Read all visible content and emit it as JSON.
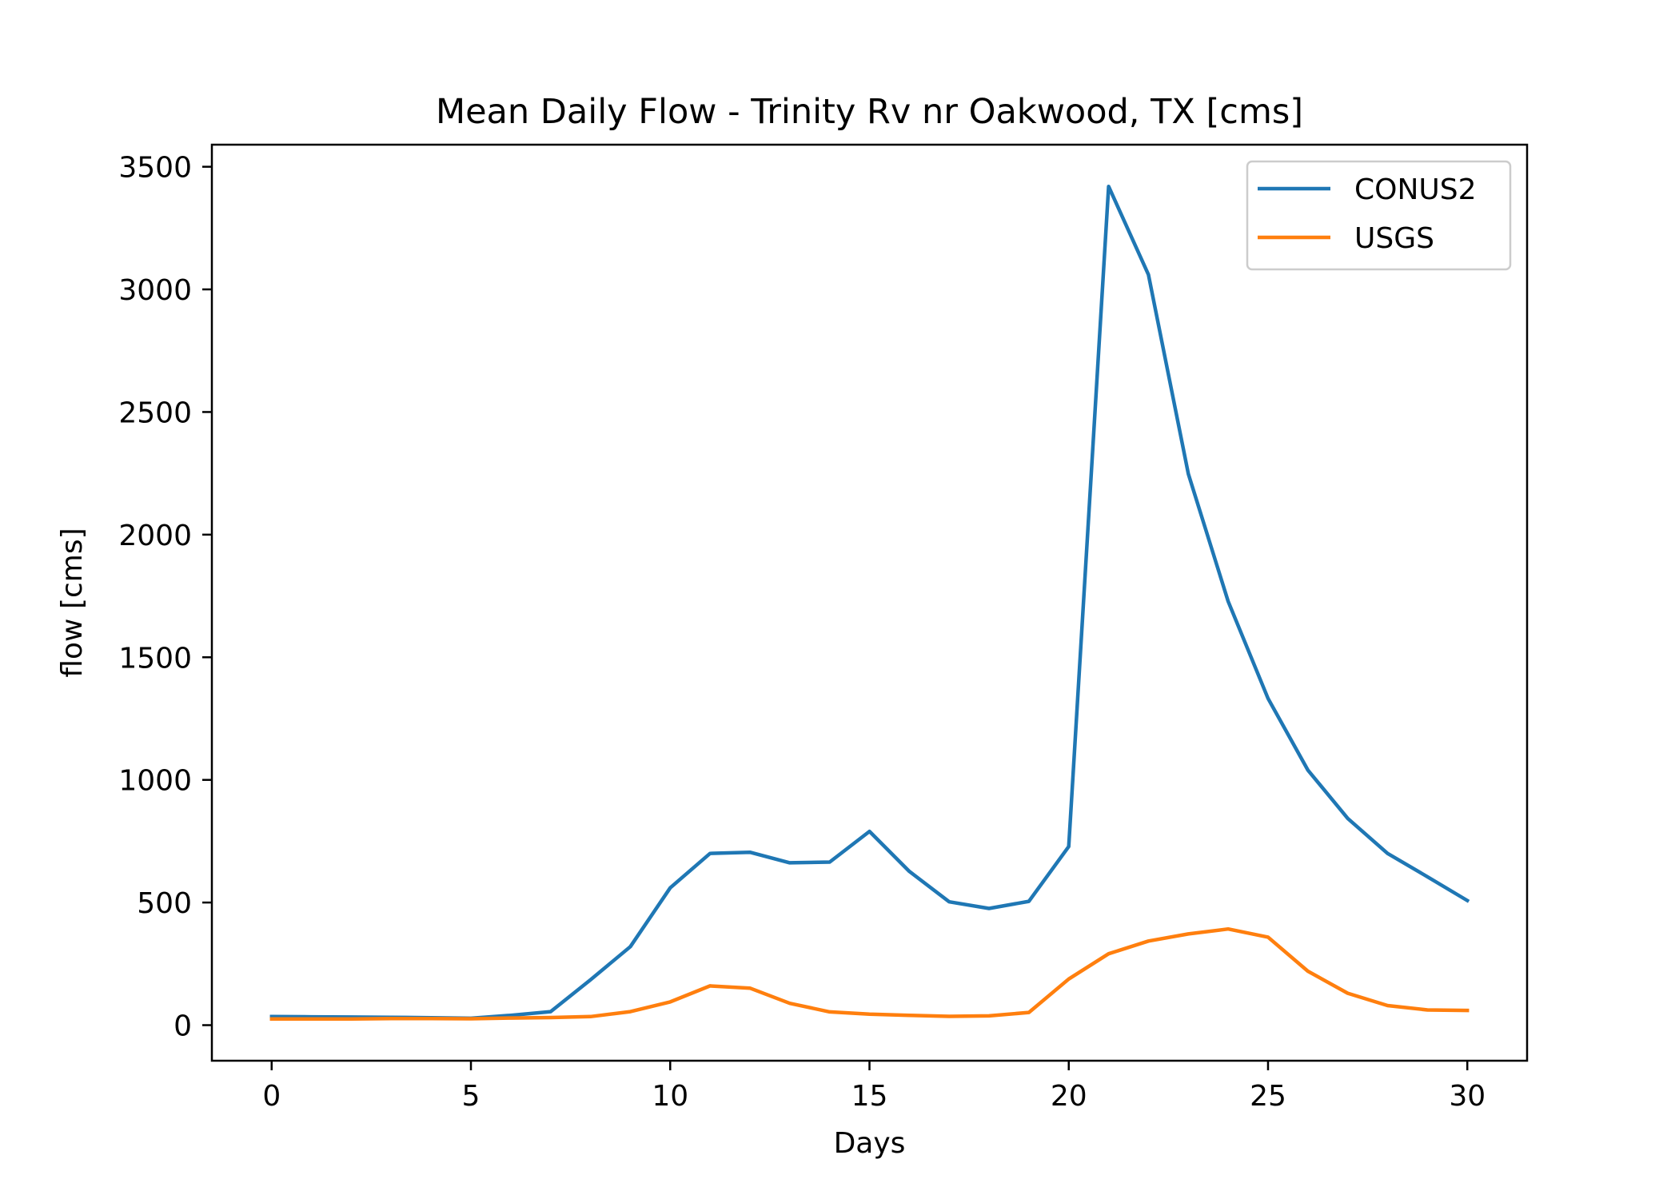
{
  "chart_data": {
    "type": "line",
    "title": "Mean Daily Flow - Trinity Rv nr Oakwood, TX [cms]",
    "xlabel": "Days",
    "ylabel": "flow [cms]",
    "xlim": [
      -1.5,
      31.5
    ],
    "ylim": [
      -145,
      3590
    ],
    "xticks": [
      0,
      5,
      10,
      15,
      20,
      25,
      30
    ],
    "yticks": [
      0,
      500,
      1000,
      1500,
      2000,
      2500,
      3000,
      3500
    ],
    "grid": false,
    "legend_position": "top-right",
    "x": [
      0,
      1,
      2,
      3,
      4,
      5,
      6,
      7,
      8,
      9,
      10,
      11,
      12,
      13,
      14,
      15,
      16,
      17,
      18,
      19,
      20,
      21,
      22,
      23,
      24,
      25,
      26,
      27,
      28,
      29,
      30
    ],
    "series": [
      {
        "name": "CONUS2",
        "color": "#1f77b4",
        "values": [
          35,
          34,
          33,
          32,
          30,
          28,
          40,
          55,
          185,
          320,
          560,
          700,
          705,
          662,
          665,
          790,
          627,
          503,
          476,
          505,
          728,
          3420,
          3060,
          2248,
          1728,
          1332,
          1040,
          843,
          700,
          605,
          508
        ]
      },
      {
        "name": "USGS",
        "color": "#ff7f0e",
        "values": [
          25,
          25,
          25,
          27,
          27,
          26,
          29,
          31,
          35,
          55,
          95,
          160,
          151,
          89,
          54,
          45,
          40,
          36,
          38,
          52,
          188,
          291,
          343,
          372,
          392,
          359,
          220,
          130,
          80,
          62,
          60
        ]
      }
    ]
  }
}
